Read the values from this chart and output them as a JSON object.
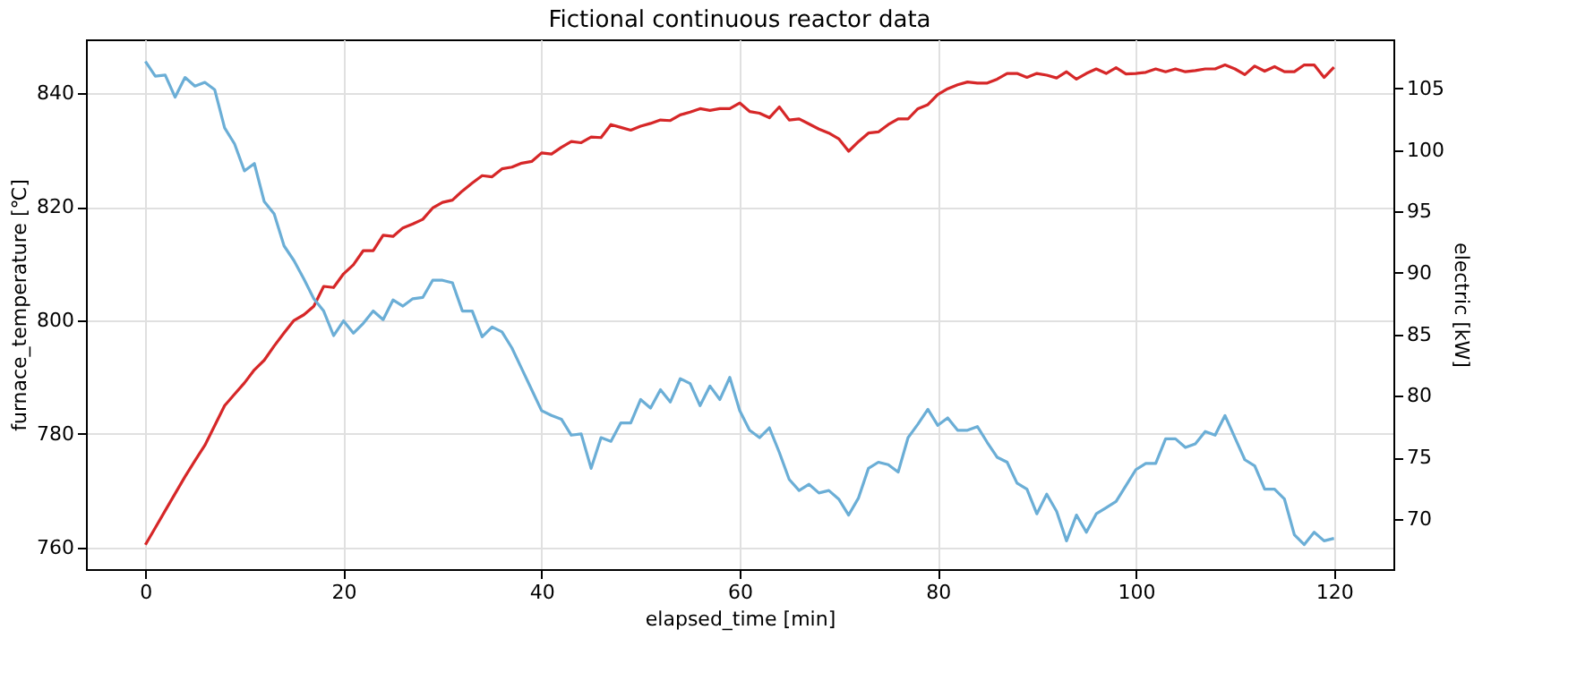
{
  "chart_data": {
    "type": "line",
    "title": "Fictional continuous reactor data",
    "xlabel": "elapsed_time [min]",
    "ylabel": "furnace_temperature [℃]",
    "y2label": "electric [kW]",
    "x": [
      0,
      1,
      2,
      3,
      4,
      5,
      6,
      7,
      8,
      9,
      10,
      11,
      12,
      13,
      14,
      15,
      16,
      17,
      18,
      19,
      20,
      21,
      22,
      23,
      24,
      25,
      26,
      27,
      28,
      29,
      30,
      31,
      32,
      33,
      34,
      35,
      36,
      37,
      38,
      39,
      40,
      41,
      42,
      43,
      44,
      45,
      46,
      47,
      48,
      49,
      50,
      51,
      52,
      53,
      54,
      55,
      56,
      57,
      58,
      59,
      60,
      61,
      62,
      63,
      64,
      65,
      66,
      67,
      68,
      69,
      70,
      71,
      72,
      73,
      74,
      75,
      76,
      77,
      78,
      79,
      80,
      81,
      82,
      83,
      84,
      85,
      86,
      87,
      88,
      89,
      90,
      91,
      92,
      93,
      94,
      95,
      96,
      97,
      98,
      99,
      100,
      101,
      102,
      103,
      104,
      105,
      106,
      107,
      108,
      109,
      110,
      111,
      112,
      113,
      114,
      115,
      116,
      117,
      118,
      119,
      120
    ],
    "series": [
      {
        "color": "#d62728",
        "values": [
          760.5,
          763.5,
          766.5,
          769.5,
          772.5,
          775.3,
          778,
          781.5,
          785,
          787,
          789,
          791.3,
          793,
          795.5,
          797.8,
          800,
          801,
          802.5,
          806,
          805.8,
          808.2,
          809.8,
          812.3,
          812.3,
          815,
          814.8,
          816.3,
          817,
          817.8,
          819.8,
          820.8,
          821.2,
          822.8,
          824.2,
          825.5,
          825.3,
          826.7,
          827,
          827.7,
          828,
          829.5,
          829.3,
          830.5,
          831.5,
          831.3,
          832.3,
          832.2,
          834.5,
          834,
          833.5,
          834.2,
          834.7,
          835.3,
          835.2,
          836.2,
          836.7,
          837.3,
          837,
          837.3,
          837.3,
          838.3,
          836.8,
          836.5,
          835.7,
          837.6,
          835.3,
          835.5,
          834.6,
          833.7,
          833,
          832,
          829.8,
          831.5,
          833,
          833.2,
          834.5,
          835.5,
          835.5,
          837.3,
          838,
          839.8,
          840.8,
          841.5,
          842,
          841.8,
          841.8,
          842.5,
          843.5,
          843.5,
          842.8,
          843.5,
          843.2,
          842.7,
          843.8,
          842.5,
          843.5,
          844.3,
          843.5,
          844.5,
          843.4,
          843.5,
          843.7,
          844.3,
          843.8,
          844.3,
          843.8,
          844,
          844.3,
          844.3,
          845,
          844.3,
          843.3,
          844.8,
          843.9,
          844.7,
          843.8,
          843.8,
          845,
          845,
          842.8,
          844.6
        ]
      },
      {
        "color": "#6baed6",
        "axis": "y2",
        "values": [
          107.2,
          106.0,
          106.1,
          104.3,
          105.9,
          105.2,
          105.5,
          104.9,
          101.8,
          100.5,
          98.3,
          98.9,
          95.8,
          94.8,
          92.2,
          91.0,
          89.5,
          87.9,
          86.9,
          84.9,
          86.1,
          85.1,
          85.9,
          86.9,
          86.2,
          87.8,
          87.3,
          87.9,
          88.0,
          89.4,
          89.4,
          89.2,
          86.9,
          86.9,
          84.8,
          85.6,
          85.2,
          83.9,
          82.2,
          80.5,
          78.8,
          78.4,
          78.1,
          76.8,
          76.9,
          74.1,
          76.6,
          76.3,
          77.8,
          77.8,
          79.7,
          79.0,
          80.5,
          79.5,
          81.4,
          81.0,
          79.2,
          80.8,
          79.7,
          81.5,
          78.8,
          77.2,
          76.6,
          77.4,
          75.4,
          73.2,
          72.3,
          72.8,
          72.1,
          72.3,
          71.6,
          70.3,
          71.7,
          74.1,
          74.6,
          74.4,
          73.8,
          76.6,
          77.7,
          78.9,
          77.6,
          78.2,
          77.2,
          77.2,
          77.5,
          76.2,
          75.0,
          74.6,
          72.9,
          72.4,
          70.4,
          72.0,
          70.6,
          68.2,
          70.3,
          68.9,
          70.4,
          70.9,
          71.4,
          72.7,
          74.0,
          74.5,
          74.5,
          76.5,
          76.5,
          75.8,
          76.1,
          77.1,
          76.8,
          78.4,
          76.6,
          74.8,
          74.3,
          72.4,
          72.4,
          71.6,
          68.7,
          67.9,
          68.9,
          68.2,
          68.4
        ]
      }
    ],
    "xlim": [
      -6,
      126
    ],
    "xticks": [
      0,
      20,
      40,
      60,
      80,
      100,
      120
    ],
    "ylim": [
      756.2,
      849.5
    ],
    "yticks": [
      760,
      780,
      800,
      820,
      840
    ],
    "y2lim": [
      65.9,
      109
    ],
    "y2ticks": [
      70,
      75,
      80,
      85,
      90,
      95,
      100,
      105
    ],
    "grid": true,
    "line_style": "solid"
  }
}
